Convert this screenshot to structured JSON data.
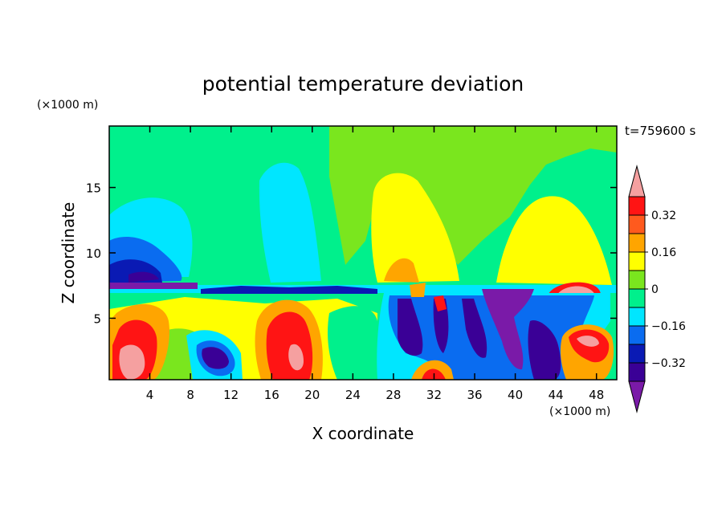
{
  "chart_data": {
    "type": "heatmap",
    "title": "potential temperature deviation",
    "xlabel": "X coordinate",
    "ylabel": "Z coordinate",
    "x_unit": "(×1000 m)",
    "y_unit": "(×1000 m)",
    "time_label": "t=759600 s",
    "xlim": [
      0,
      50
    ],
    "ylim": [
      0.3,
      19.7
    ],
    "xticks": [
      4,
      8,
      12,
      16,
      20,
      24,
      28,
      32,
      36,
      40,
      44,
      48
    ],
    "yticks": [
      5,
      10,
      15
    ],
    "colorbar": {
      "levels": [
        -0.4,
        -0.32,
        -0.24,
        -0.16,
        -0.08,
        0,
        0.08,
        0.16,
        0.24,
        0.32,
        0.4
      ],
      "labeled": [
        0.32,
        0.16,
        0,
        -0.16,
        -0.32
      ],
      "tick_labels": [
        "0.32",
        "0.16",
        "0",
        "−0.16",
        "−0.32"
      ],
      "colors": [
        "#7a1aa8",
        "#3a0096",
        "#0a1ab4",
        "#0a6cf0",
        "#00e6ff",
        "#00f08c",
        "#7ae61e",
        "#ffff00",
        "#ffa500",
        "#ff5a1e",
        "#ff1414",
        "#f5a0a0"
      ]
    },
    "features": [
      {
        "x": 4.5,
        "z": 10.5,
        "value": -0.35
      },
      {
        "x": 10.0,
        "z": 12.5,
        "value": -0.14
      },
      {
        "x": 19.0,
        "z": 12.5,
        "value": -0.12
      },
      {
        "x": 30.0,
        "z": 11.0,
        "value": 0.16
      },
      {
        "x": 45.0,
        "z": 11.0,
        "value": 0.15
      },
      {
        "x": 2.5,
        "z": 2.0,
        "value": 0.38
      },
      {
        "x": 10.0,
        "z": 2.0,
        "value": -0.35
      },
      {
        "x": 18.5,
        "z": 2.5,
        "value": 0.35
      },
      {
        "x": 30.0,
        "z": 3.5,
        "value": -0.38
      },
      {
        "x": 38.5,
        "z": 3.5,
        "value": -0.36
      },
      {
        "x": 46.5,
        "z": 2.5,
        "value": 0.36
      },
      {
        "x": 45.0,
        "z": 6.8,
        "value": 0.38
      }
    ]
  }
}
